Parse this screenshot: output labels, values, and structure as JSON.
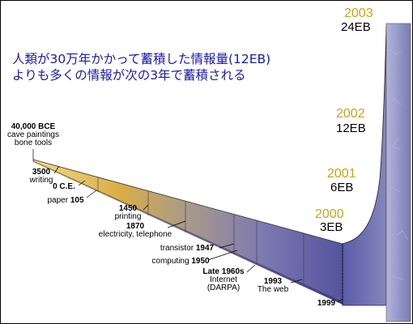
{
  "headline": {
    "line1": "人類が30万年かかって蓄積した情報量(12EB)",
    "line2": "よりも多くの情報が次の3年で蓄積される"
  },
  "timeline": [
    {
      "lines": [
        {
          "t": "40,000 BCE",
          "b": true
        },
        {
          "t": "cave paintings"
        },
        {
          "t": "bone tools"
        }
      ]
    },
    {
      "lines": [
        {
          "t": "3500",
          "b": true
        },
        {
          "t": "writing"
        }
      ]
    },
    {
      "lines": [
        {
          "t": "0 C.E.",
          "b": true
        }
      ]
    },
    {
      "lines": [
        {
          "t": "paper "
        },
        {
          "t": "105",
          "b": true
        }
      ]
    },
    {
      "lines": [
        {
          "t": "1450",
          "b": true
        },
        {
          "t": "printing"
        }
      ]
    },
    {
      "lines": [
        {
          "t": "1870",
          "b": true
        },
        {
          "t": "electricity, telephone"
        }
      ]
    },
    {
      "lines": [
        {
          "t": "transistor "
        },
        {
          "t": "1947",
          "b": true
        }
      ]
    },
    {
      "lines": [
        {
          "t": "computing "
        },
        {
          "t": "1950",
          "b": true
        }
      ]
    },
    {
      "lines": [
        {
          "t": "Late 1960s",
          "b": true
        },
        {
          "t": "Internet"
        },
        {
          "t": "(DARPA)"
        }
      ]
    },
    {
      "lines": [
        {
          "t": "1993",
          "b": true
        },
        {
          "t": "The web"
        }
      ]
    },
    {
      "lines": [
        {
          "t": "1999",
          "b": true
        }
      ]
    }
  ],
  "milestones": [
    {
      "year": "2000",
      "volume": "3EB"
    },
    {
      "year": "2001",
      "volume": "6EB"
    },
    {
      "year": "2002",
      "volume": "12EB"
    },
    {
      "year": "2003",
      "volume": "24EB"
    }
  ],
  "colors": {
    "headline": "#1a1aa6",
    "year": "#c9a21f",
    "wedge_start": "#e9c45a",
    "wedge_end": "#5a5aa8",
    "pillar": "#8f91c4"
  }
}
